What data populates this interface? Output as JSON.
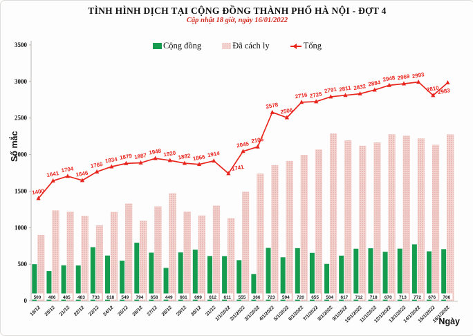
{
  "chart_data": {
    "type": "combo-bar-line",
    "title": "TÌNH HÌNH DỊCH TẠI CỘNG ĐỒNG THÀNH PHỐ HÀ NỘI - ĐỢT 4",
    "subtitle": "Cập nhật 18 giờ, ngày 16/01/2022",
    "xlabel": "Ngày",
    "ylabel": "Số mắc",
    "ylim": [
      0,
      3500
    ],
    "yticks": [
      0,
      500,
      1000,
      1500,
      2000,
      2500,
      3000,
      3500
    ],
    "grid": false,
    "legend_position": "top",
    "categories": [
      "19/12",
      "20/12",
      "21/12",
      "22/12",
      "23/12",
      "24/12",
      "25/12",
      "26/12",
      "27/12",
      "28/12",
      "29/12",
      "30/12",
      "31/12",
      "1/1/2022",
      "2/1/2022",
      "3/1/2022",
      "4/1/2022",
      "5/1/2022",
      "6/1/2022",
      "7/1/2022",
      "8/1/2022",
      "9/1/2022",
      "10/1/2022",
      "11/1/2022",
      "12/1/2022",
      "13/1/2022",
      "14/1/2022",
      "15/1/2022",
      "16/1/2022"
    ],
    "series": [
      {
        "name": "Cộng đồng",
        "type": "bar",
        "color": "#169c4f",
        "values": [
          500,
          406,
          485,
          483,
          733,
          618,
          549,
          794,
          658,
          449,
          661,
          699,
          612,
          611,
          555,
          366,
          723,
          594,
          720,
          655,
          504,
          617,
          712,
          718,
          670,
          713,
          772,
          676,
          706
        ]
      },
      {
        "name": "Đã cách ly",
        "type": "bar",
        "color_base": "#f4d4d0",
        "color_dot": "#dfa09a",
        "values": [
          900,
          1235,
          1219,
          1163,
          1032,
          1216,
          1330,
          1093,
          1290,
          1471,
          1221,
          1167,
          1302,
          1130,
          1490,
          1740,
          1855,
          1912,
          1996,
          2070,
          2287,
          2194,
          2120,
          2166,
          2278,
          2256,
          2221,
          2134,
          2277
        ]
      },
      {
        "name": "Tổng",
        "type": "line",
        "color": "#e8251d",
        "marker": "triangle",
        "values": [
          1400,
          1641,
          1704,
          1646,
          1765,
          1834,
          1879,
          1887,
          1948,
          1920,
          1882,
          1866,
          1914,
          1741,
          2045,
          2106,
          2578,
          2506,
          2716,
          2725,
          2791,
          2811,
          2832,
          2884,
          2948,
          2969,
          2993,
          2810,
          2983
        ]
      }
    ]
  },
  "colors": {
    "community_green": "#169c4f",
    "quarantine_pink_base": "#f4d4d0",
    "quarantine_pink_dot": "#dfa09a",
    "total_red": "#e8251d",
    "subtitle_red": "#d22a20",
    "axis_gray": "#b7b5b2"
  }
}
